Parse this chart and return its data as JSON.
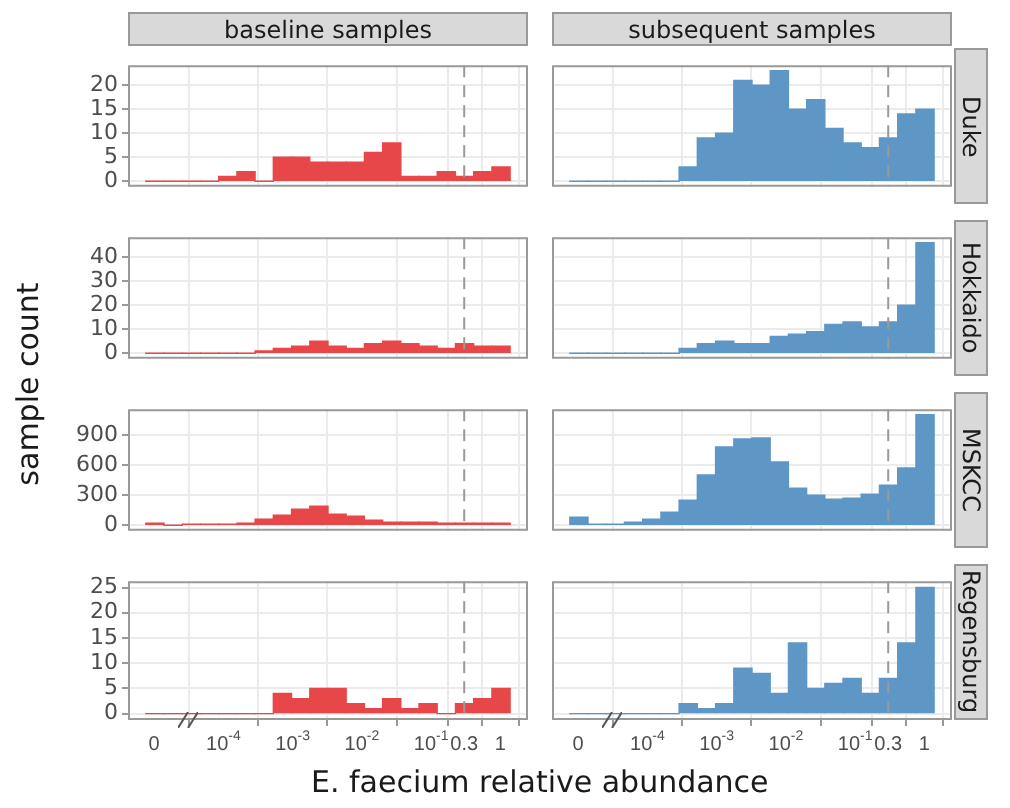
{
  "chart_data": [
    {
      "type": "histogram",
      "title": "baseline samples",
      "ylabel": "sample count",
      "log": "x",
      "bins": [
        7.6e-06,
        1.39e-05,
        2.55e-05,
        4.67e-05,
        8.55e-05,
        0.000157,
        0.000287,
        0.000526,
        0.000964,
        0.00177,
        0.00324,
        0.00593,
        0.0109,
        0.0199,
        0.0365,
        0.0668,
        0.122,
        0.224,
        0.411,
        0.753,
        1.38
      ],
      "values": [
        0,
        0,
        0,
        0,
        1,
        2,
        0,
        5,
        5,
        4,
        4,
        4,
        6,
        8,
        1,
        1,
        2,
        1,
        2,
        3
      ],
      "color": "#e8474a",
      "xlim": [
        4.2e-06,
        2.5
      ],
      "xticks": [
        1e-05,
        0.0001,
        0.001,
        0.01,
        0.1,
        0.3,
        1
      ],
      "ylim": [
        -1.15,
        24.15
      ],
      "yticks": [
        0,
        5,
        10,
        15,
        20
      ],
      "tick_labels": "y",
      "grid": true,
      "ref_lines": [
        {
          "axis": "x",
          "value": 0.3,
          "color": "#999999",
          "line_style": "dashed"
        }
      ]
    },
    {
      "type": "histogram",
      "title": "subsequent samples",
      "y2label": "Duke",
      "log": "x",
      "bins": [
        7.6e-06,
        1.39e-05,
        2.55e-05,
        4.67e-05,
        8.55e-05,
        0.000157,
        0.000287,
        0.000526,
        0.000964,
        0.00177,
        0.00324,
        0.00593,
        0.0109,
        0.0199,
        0.0365,
        0.0668,
        0.122,
        0.224,
        0.411,
        0.753,
        1.38
      ],
      "values": [
        0,
        0,
        0,
        0,
        0,
        0,
        3,
        9,
        10,
        21,
        20,
        23,
        15,
        17,
        11,
        8,
        7,
        9,
        14,
        15
      ],
      "color": "#5e97c6",
      "xlim": [
        4.2e-06,
        2.5
      ],
      "xticks": [
        1e-05,
        0.0001,
        0.001,
        0.01,
        0.1,
        0.3,
        1
      ],
      "ylim": [
        -1.15,
        24.15
      ],
      "yticks": [
        0,
        5,
        10,
        15,
        20
      ],
      "tick_labels": false,
      "grid": true,
      "ref_lines": [
        {
          "axis": "x",
          "value": 0.3,
          "color": "#999999",
          "line_style": "dashed"
        }
      ]
    },
    {
      "type": "histogram",
      "log": "x",
      "bins": [
        7.6e-06,
        1.39e-05,
        2.55e-05,
        4.67e-05,
        8.55e-05,
        0.000157,
        0.000287,
        0.000526,
        0.000964,
        0.00177,
        0.00324,
        0.00593,
        0.0109,
        0.0199,
        0.0365,
        0.0668,
        0.122,
        0.224,
        0.411,
        0.753,
        1.38
      ],
      "values": [
        0,
        0,
        0,
        0,
        0,
        0,
        1,
        2,
        3,
        5,
        3,
        2,
        4,
        5,
        4,
        3,
        2,
        4,
        3,
        3
      ],
      "color": "#e8474a",
      "xlim": [
        4.2e-06,
        2.5
      ],
      "xticks": [
        1e-05,
        0.0001,
        0.001,
        0.01,
        0.1,
        0.3,
        1
      ],
      "ylim": [
        -2.3,
        48.3
      ],
      "yticks": [
        0,
        10,
        20,
        30,
        40
      ],
      "tick_labels": "y",
      "grid": true,
      "ref_lines": [
        {
          "axis": "x",
          "value": 0.3,
          "color": "#999999",
          "line_style": "dashed"
        }
      ]
    },
    {
      "type": "histogram",
      "y2label": "Hokkaido",
      "log": "x",
      "bins": [
        7.6e-06,
        1.39e-05,
        2.55e-05,
        4.67e-05,
        8.55e-05,
        0.000157,
        0.000287,
        0.000526,
        0.000964,
        0.00177,
        0.00324,
        0.00593,
        0.0109,
        0.0199,
        0.0365,
        0.0668,
        0.122,
        0.224,
        0.411,
        0.753,
        1.38
      ],
      "values": [
        0,
        0,
        0,
        0,
        0,
        0,
        2,
        4,
        5,
        4,
        4,
        7,
        8,
        9,
        12,
        13,
        11,
        13,
        20,
        46
      ],
      "color": "#5e97c6",
      "xlim": [
        4.2e-06,
        2.5
      ],
      "xticks": [
        1e-05,
        0.0001,
        0.001,
        0.01,
        0.1,
        0.3,
        1
      ],
      "ylim": [
        -2.3,
        48.3
      ],
      "yticks": [
        0,
        10,
        20,
        30,
        40
      ],
      "tick_labels": false,
      "grid": true,
      "ref_lines": [
        {
          "axis": "x",
          "value": 0.3,
          "color": "#999999",
          "line_style": "dashed"
        }
      ]
    },
    {
      "type": "histogram",
      "log": "x",
      "bins": [
        7.6e-06,
        1.39e-05,
        2.55e-05,
        4.67e-05,
        8.55e-05,
        0.000157,
        0.000287,
        0.000526,
        0.000964,
        0.00177,
        0.00324,
        0.00593,
        0.0109,
        0.0199,
        0.0365,
        0.0668,
        0.122,
        0.224,
        0.411,
        0.753,
        1.38
      ],
      "values": [
        20,
        0,
        10,
        10,
        10,
        20,
        60,
        100,
        160,
        190,
        110,
        90,
        50,
        30,
        30,
        30,
        20,
        20,
        20,
        20
      ],
      "color": "#e8474a",
      "xlim": [
        4.2e-06,
        2.5
      ],
      "xticks": [
        1e-05,
        0.0001,
        0.001,
        0.01,
        0.1,
        0.3,
        1
      ],
      "ylim": [
        -55,
        1155
      ],
      "yticks": [
        0,
        300,
        600,
        900
      ],
      "tick_labels": "y",
      "grid": true,
      "ref_lines": [
        {
          "axis": "x",
          "value": 0.3,
          "color": "#999999",
          "line_style": "dashed"
        }
      ]
    },
    {
      "type": "histogram",
      "y2label": "MSKCC",
      "log": "x",
      "bins": [
        7.6e-06,
        1.39e-05,
        2.55e-05,
        4.67e-05,
        8.55e-05,
        0.000157,
        0.000287,
        0.000526,
        0.000964,
        0.00177,
        0.00324,
        0.00593,
        0.0109,
        0.0199,
        0.0365,
        0.0668,
        0.122,
        0.224,
        0.411,
        0.753,
        1.38
      ],
      "values": [
        80,
        10,
        10,
        30,
        60,
        130,
        250,
        500,
        780,
        860,
        870,
        630,
        370,
        300,
        260,
        270,
        310,
        400,
        570,
        1100
      ],
      "color": "#5e97c6",
      "xlim": [
        4.2e-06,
        2.5
      ],
      "xticks": [
        1e-05,
        0.0001,
        0.001,
        0.01,
        0.1,
        0.3,
        1
      ],
      "ylim": [
        -55,
        1155
      ],
      "yticks": [
        0,
        300,
        600,
        900
      ],
      "tick_labels": false,
      "grid": true,
      "ref_lines": [
        {
          "axis": "x",
          "value": 0.3,
          "color": "#999999",
          "line_style": "dashed"
        }
      ]
    },
    {
      "type": "histogram",
      "xlabel": "E. faecium relative abundance",
      "log": "x",
      "bins": [
        7.6e-06,
        1.39e-05,
        2.55e-05,
        4.67e-05,
        8.55e-05,
        0.000157,
        0.000287,
        0.000526,
        0.000964,
        0.00177,
        0.00324,
        0.00593,
        0.0109,
        0.0199,
        0.0365,
        0.0668,
        0.122,
        0.224,
        0.411,
        0.753,
        1.38
      ],
      "values": [
        0,
        0,
        0,
        0,
        0,
        0,
        0,
        4,
        3,
        5,
        5,
        2,
        1,
        3,
        1,
        2,
        0,
        2,
        3,
        5
      ],
      "color": "#e8474a",
      "xlim": [
        4.2e-06,
        2.5
      ],
      "xticks": [
        {
          "value": 1e-05,
          "label": "0"
        },
        {
          "value": 0.0001,
          "label": "10$^{-4}$"
        },
        {
          "value": 0.001,
          "label": "10$^{-3}$"
        },
        {
          "value": 0.01,
          "label": "10$^{-2}$"
        },
        {
          "value": 0.1,
          "label": "10$^{-1}$"
        },
        0.3,
        1
      ],
      "ylim": [
        -1.25,
        26.25
      ],
      "yticks": [
        0,
        5,
        10,
        15,
        20,
        25
      ],
      "grid": true,
      "ref_lines": [
        {
          "axis": "x",
          "value": 0.3,
          "color": "#999999",
          "line_style": "dashed"
        }
      ]
    },
    {
      "type": "histogram",
      "y2label": "Regensburg",
      "log": "x",
      "bins": [
        7.6e-06,
        1.39e-05,
        2.55e-05,
        4.67e-05,
        8.55e-05,
        0.000157,
        0.000287,
        0.000526,
        0.000964,
        0.00177,
        0.00324,
        0.00593,
        0.0109,
        0.0199,
        0.0365,
        0.0668,
        0.122,
        0.224,
        0.411,
        0.753,
        1.38
      ],
      "values": [
        0,
        0,
        0,
        0,
        0,
        0,
        2,
        1,
        2,
        9,
        8,
        4,
        14,
        5,
        6,
        7,
        4,
        7,
        14,
        25
      ],
      "color": "#5e97c6",
      "xlim": [
        4.2e-06,
        2.5
      ],
      "xticks": [
        {
          "value": 1e-05,
          "label": "0"
        },
        {
          "value": 0.0001,
          "label": "10$^{-4}$"
        },
        {
          "value": 0.001,
          "label": "10$^{-3}$"
        },
        {
          "value": 0.01,
          "label": "10$^{-2}$"
        },
        {
          "value": 0.1,
          "label": "10$^{-1}$"
        },
        0.3,
        1
      ],
      "ylim": [
        -1.25,
        26.25
      ],
      "yticks": [
        0,
        5,
        10,
        15,
        20,
        25
      ],
      "tick_labels": "x",
      "grid": true,
      "ref_lines": [
        {
          "axis": "x",
          "value": 0.3,
          "color": "#999999",
          "line_style": "dashed"
        }
      ]
    }
  ]
}
